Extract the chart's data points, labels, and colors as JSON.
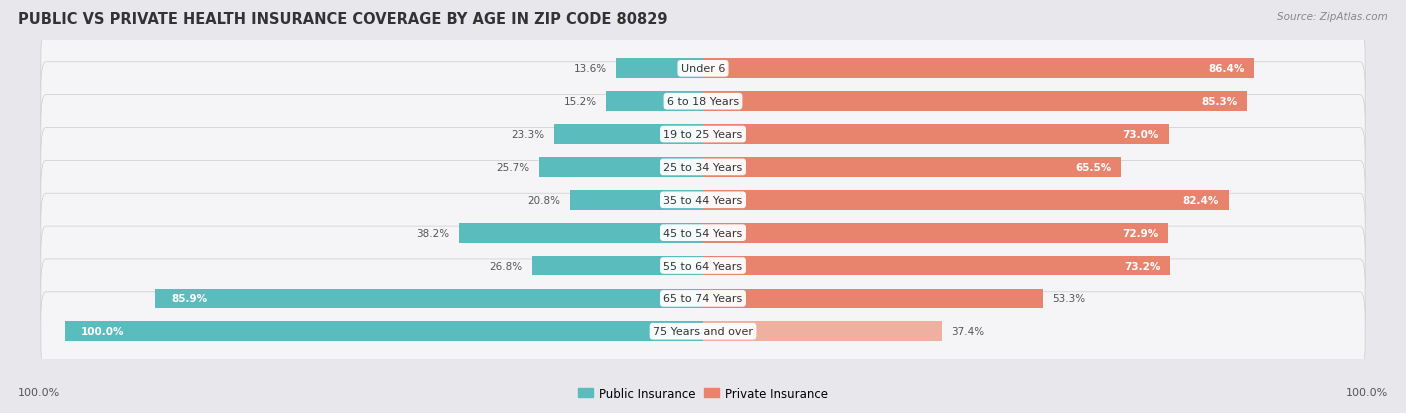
{
  "title": "PUBLIC VS PRIVATE HEALTH INSURANCE COVERAGE BY AGE IN ZIP CODE 80829",
  "source": "Source: ZipAtlas.com",
  "categories": [
    "Under 6",
    "6 to 18 Years",
    "19 to 25 Years",
    "25 to 34 Years",
    "35 to 44 Years",
    "45 to 54 Years",
    "55 to 64 Years",
    "65 to 74 Years",
    "75 Years and over"
  ],
  "public_values": [
    13.6,
    15.2,
    23.3,
    25.7,
    20.8,
    38.2,
    26.8,
    85.9,
    100.0
  ],
  "private_values": [
    86.4,
    85.3,
    73.0,
    65.5,
    82.4,
    72.9,
    73.2,
    53.3,
    37.4
  ],
  "public_color": "#5bbcbe",
  "private_color": "#e8836e",
  "private_color_light": "#f0b0a0",
  "public_label": "Public Insurance",
  "private_label": "Private Insurance",
  "bg_color": "#e8e8ec",
  "row_bg_color": "#f5f5f7",
  "title_fontsize": 10.5,
  "source_fontsize": 7.5,
  "label_fontsize": 8.0,
  "value_fontsize": 7.5,
  "axis_label": "100.0%"
}
